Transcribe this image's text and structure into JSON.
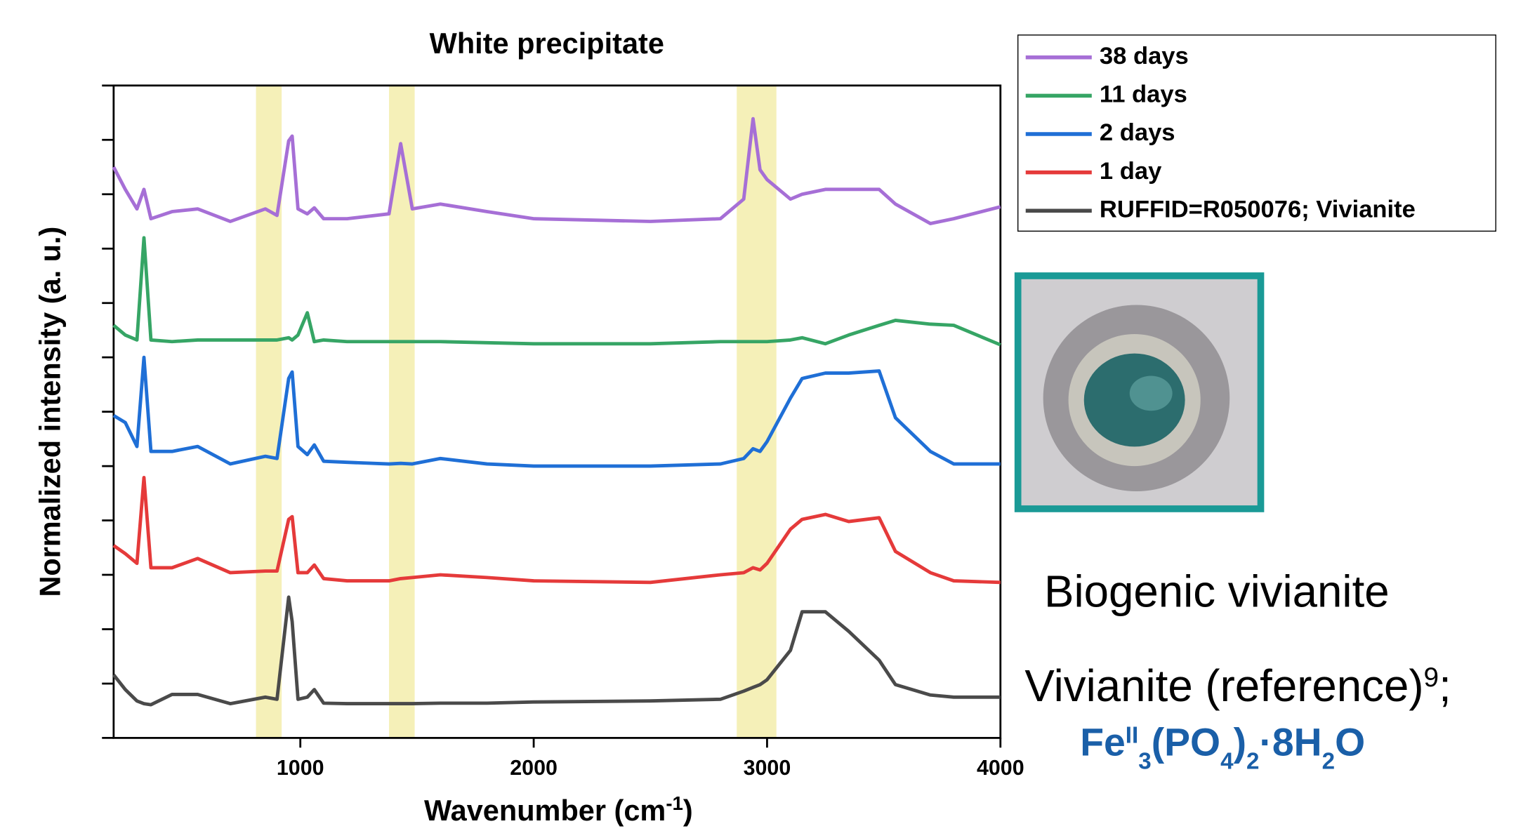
{
  "chart_data": {
    "type": "line",
    "title": "White precipitate",
    "x_label": [
      "Wavenumber (cm",
      "-1",
      ")"
    ],
    "y_label": "Normalized intensity (a. u.)",
    "xlim": [
      200,
      4000
    ],
    "ylim": [
      0,
      12
    ],
    "xticks": [
      1000,
      2000,
      3000,
      4000
    ],
    "yticks": [
      0,
      1,
      2,
      3,
      4,
      5,
      6,
      7,
      8,
      9,
      10,
      11,
      12
    ],
    "shaded_ranges": [
      [
        810,
        920
      ],
      [
        1380,
        1490
      ],
      [
        2870,
        3040
      ]
    ],
    "shade_color": "#f5f0b8",
    "x": [
      200,
      250,
      300,
      330,
      360,
      450,
      560,
      700,
      850,
      900,
      950,
      965,
      990,
      1030,
      1060,
      1100,
      1200,
      1380,
      1430,
      1480,
      1600,
      1800,
      2000,
      2500,
      2800,
      2900,
      2940,
      2970,
      3000,
      3100,
      3150,
      3250,
      3350,
      3480,
      3550,
      3700,
      3800,
      4000
    ],
    "series": [
      {
        "name": "38 days",
        "color": "#a66fd6",
        "values": [
          10.5,
          10.09,
          9.73,
          10.09,
          9.55,
          9.68,
          9.73,
          9.5,
          9.73,
          9.61,
          10.98,
          11.07,
          9.73,
          9.64,
          9.75,
          9.55,
          9.55,
          9.64,
          10.93,
          9.73,
          9.82,
          9.68,
          9.55,
          9.5,
          9.55,
          9.91,
          11.39,
          10.45,
          10.27,
          9.91,
          10.0,
          10.09,
          10.09,
          10.09,
          9.82,
          9.46,
          9.55,
          9.77
        ]
      },
      {
        "name": "11 days",
        "color": "#36a565",
        "values": [
          7.59,
          7.41,
          7.32,
          9.2,
          7.32,
          7.29,
          7.32,
          7.32,
          7.32,
          7.32,
          7.36,
          7.32,
          7.41,
          7.82,
          7.29,
          7.32,
          7.29,
          7.29,
          7.29,
          7.29,
          7.29,
          7.27,
          7.25,
          7.25,
          7.29,
          7.29,
          7.29,
          7.29,
          7.29,
          7.32,
          7.36,
          7.25,
          7.41,
          7.59,
          7.68,
          7.61,
          7.59,
          7.23
        ]
      },
      {
        "name": "2 days",
        "color": "#1f6fd6",
        "values": [
          5.93,
          5.8,
          5.36,
          7.0,
          5.27,
          5.27,
          5.36,
          5.04,
          5.18,
          5.14,
          6.61,
          6.73,
          5.36,
          5.21,
          5.39,
          5.09,
          5.07,
          5.04,
          5.05,
          5.04,
          5.14,
          5.04,
          5.0,
          5.0,
          5.04,
          5.14,
          5.32,
          5.27,
          5.45,
          6.25,
          6.61,
          6.71,
          6.71,
          6.75,
          5.89,
          5.27,
          5.04,
          5.04
        ]
      },
      {
        "name": "1 day",
        "color": "#e53a3a",
        "values": [
          3.54,
          3.39,
          3.21,
          4.79,
          3.13,
          3.13,
          3.3,
          3.04,
          3.07,
          3.07,
          4.02,
          4.07,
          3.04,
          3.04,
          3.18,
          2.93,
          2.89,
          2.89,
          2.93,
          2.95,
          3.0,
          2.95,
          2.89,
          2.86,
          3.0,
          3.04,
          3.13,
          3.09,
          3.21,
          3.84,
          4.02,
          4.11,
          3.98,
          4.05,
          3.43,
          3.04,
          2.89,
          2.86
        ]
      },
      {
        "name": "RUFFID=R050076; Vivianite",
        "color": "#4a4a4a",
        "values": [
          1.16,
          0.89,
          0.68,
          0.63,
          0.61,
          0.8,
          0.8,
          0.63,
          0.75,
          0.71,
          2.59,
          2.14,
          0.71,
          0.75,
          0.89,
          0.64,
          0.63,
          0.63,
          0.63,
          0.63,
          0.64,
          0.64,
          0.66,
          0.68,
          0.71,
          0.86,
          0.93,
          0.98,
          1.07,
          1.61,
          2.32,
          2.32,
          1.96,
          1.43,
          0.98,
          0.79,
          0.75,
          0.75
        ]
      }
    ],
    "legend": "upper right",
    "annotations": {
      "biogenic": "Biogenic vivianite",
      "reference": [
        "Vivianite (reference)",
        "9",
        ";"
      ],
      "formula": [
        "Fe",
        "II",
        "3",
        "(PO",
        "4",
        ")",
        "2",
        "·8H",
        "2",
        "O"
      ]
    }
  }
}
